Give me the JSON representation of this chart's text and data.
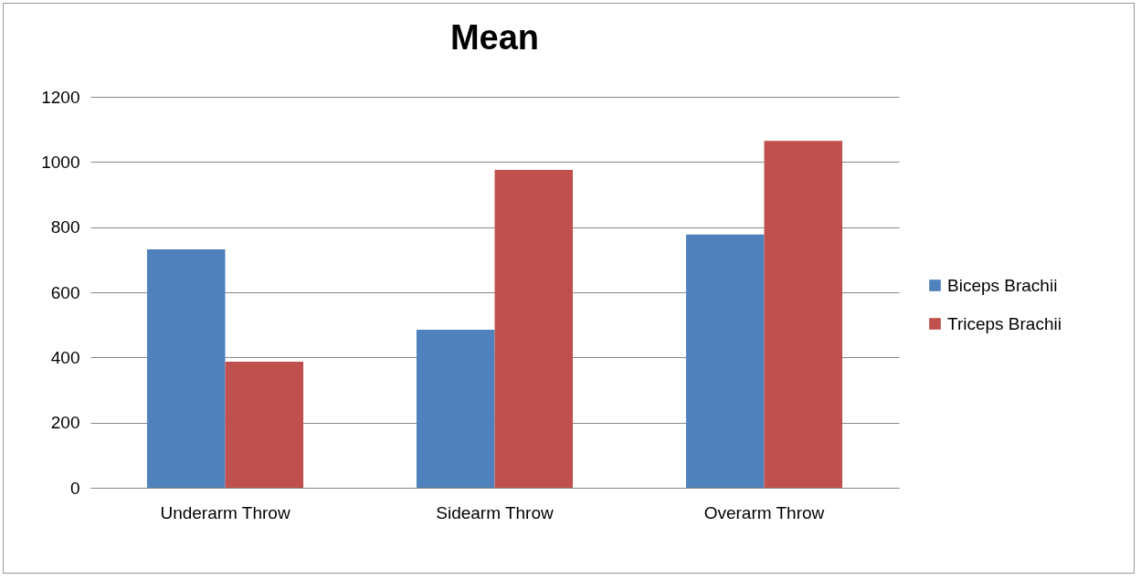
{
  "chart_data": {
    "type": "bar",
    "title": "Mean",
    "categories": [
      "Underarm Throw",
      "Sidearm Throw",
      "Overarm Throw"
    ],
    "series": [
      {
        "name": "Biceps Brachii",
        "color": "#4f81bd",
        "values": [
          732,
          485,
          777
        ]
      },
      {
        "name": "Triceps Brachii",
        "color": "#c0504d",
        "values": [
          387,
          976,
          1065
        ]
      }
    ],
    "ylim": [
      0,
      1200
    ],
    "yticks": [
      0,
      200,
      400,
      600,
      800,
      1000,
      1200
    ],
    "grid": "y",
    "legend": "right"
  }
}
